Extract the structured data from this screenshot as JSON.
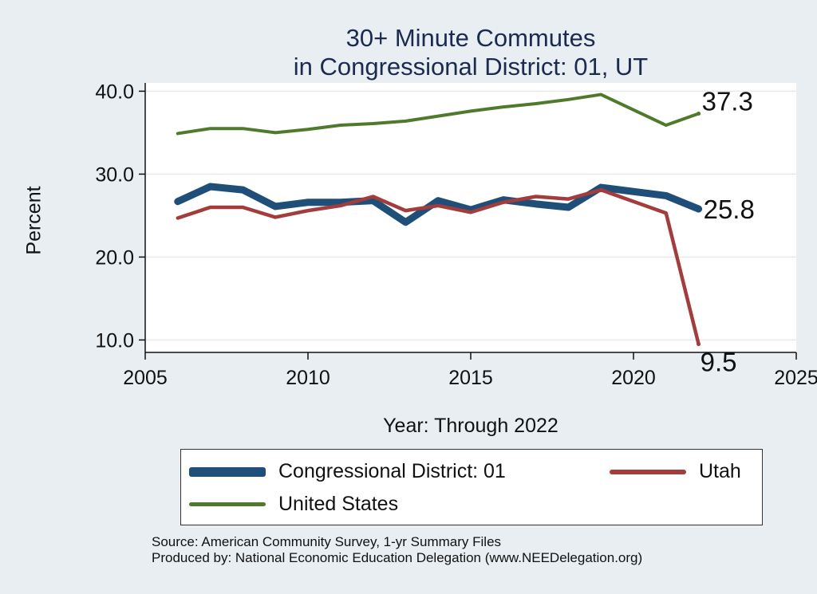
{
  "chart_data": {
    "type": "line",
    "title_line1": "30+ Minute Commutes",
    "title_line2": "in Congressional District:  01, UT",
    "xlabel": "Year: Through 2022",
    "ylabel": "Percent",
    "xlim": [
      2005,
      2025
    ],
    "ylim": [
      8.5,
      41
    ],
    "xticks": [
      "2005",
      "2010",
      "2015",
      "2020",
      "2025"
    ],
    "yticks": [
      "10.0",
      "20.0",
      "30.0",
      "40.0"
    ],
    "grid": true,
    "legend_position": "bottom",
    "x": [
      2006,
      2007,
      2008,
      2009,
      2010,
      2011,
      2012,
      2013,
      2014,
      2015,
      2016,
      2017,
      2018,
      2019,
      2021,
      2022
    ],
    "series": [
      {
        "name": "Congressional District:  01",
        "color": "#1f4e79",
        "values": [
          26.7,
          28.5,
          28.1,
          26.1,
          26.6,
          26.6,
          26.8,
          24.2,
          26.8,
          25.7,
          26.9,
          26.4,
          26.0,
          28.4,
          27.4,
          25.8
        ],
        "end_label": "25.8"
      },
      {
        "name": "Utah",
        "color": "#a33d3d",
        "values": [
          24.7,
          26.0,
          26.0,
          24.8,
          25.6,
          26.2,
          27.3,
          25.6,
          26.2,
          25.4,
          26.6,
          27.3,
          27.0,
          28.1,
          25.3,
          9.5
        ],
        "end_label": "9.5"
      },
      {
        "name": "United States",
        "color": "#4f7a2c",
        "values": [
          34.9,
          35.5,
          35.5,
          35.0,
          35.4,
          35.9,
          36.1,
          36.4,
          37.0,
          37.6,
          38.1,
          38.5,
          39.0,
          39.6,
          35.9,
          37.3
        ],
        "end_label": "37.3"
      }
    ]
  },
  "source_line1": "Source: American Community Survey, 1-yr Summary Files",
  "source_line2": "Produced by: National Economic Education Delegation (www.NEEDelegation.org)"
}
